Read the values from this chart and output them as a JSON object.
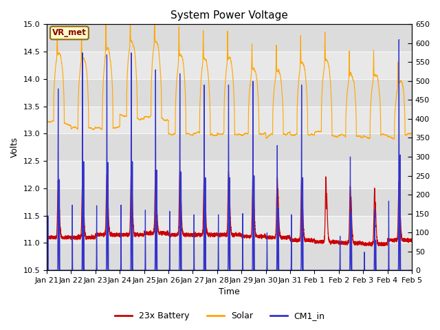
{
  "title": "System Power Voltage",
  "ylabel_left": "Volts",
  "xlabel": "Time",
  "ylim_left": [
    10.5,
    15.0
  ],
  "ylim_right": [
    0,
    650
  ],
  "yticks_left": [
    10.5,
    11.0,
    11.5,
    12.0,
    12.5,
    13.0,
    13.5,
    14.0,
    14.5,
    15.0
  ],
  "yticks_right": [
    0,
    50,
    100,
    150,
    200,
    250,
    300,
    350,
    400,
    450,
    500,
    550,
    600,
    650
  ],
  "xtick_labels": [
    "Jan 21",
    "Jan 22",
    "Jan 23",
    "Jan 24",
    "Jan 25",
    "Jan 26",
    "Jan 27",
    "Jan 28",
    "Jan 29",
    "Jan 30",
    "Jan 31",
    "Feb 1",
    "Feb 2",
    "Feb 3",
    "Feb 4",
    "Feb 5"
  ],
  "colors": {
    "battery": "#CC0000",
    "solar": "#FFA500",
    "cm1": "#3333CC",
    "background": "#E8E8E8"
  },
  "band_colors": [
    "#DCDCDC",
    "#E8E8E8",
    "#DCDCDC",
    "#E8E8E8",
    "#DCDCDC",
    "#E8E8E8",
    "#DCDCDC",
    "#E8E8E8",
    "#DCDCDC"
  ],
  "annotation_text": "VR_met",
  "legend_labels": [
    "23x Battery",
    "Solar",
    "CM1_in"
  ],
  "n_days": 15,
  "pts_per_day": 480,
  "title_fontsize": 11,
  "label_fontsize": 9,
  "tick_fontsize": 8
}
